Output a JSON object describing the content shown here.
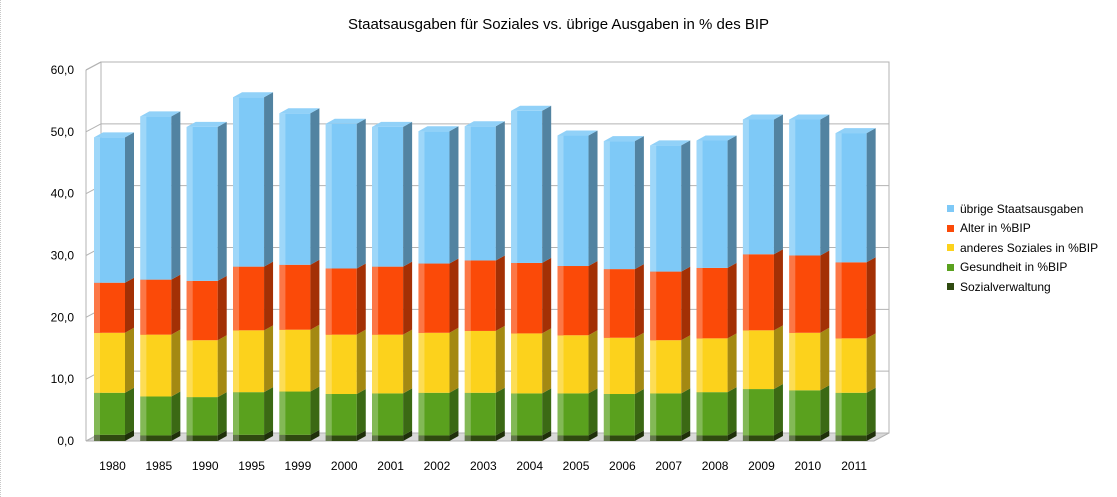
{
  "chart_data": {
    "type": "bar",
    "stacked": true,
    "title": "Staatsausgaben für Soziales vs. übrige Ausgaben in % des BIP",
    "xlabel": "",
    "ylabel": "",
    "ylim": [
      0,
      60
    ],
    "yticks": [
      "0,0",
      "10,0",
      "20,0",
      "30,0",
      "40,0",
      "50,0",
      "60,0"
    ],
    "grid": true,
    "legend_position": "right",
    "categories": [
      "1980",
      "1985",
      "1990",
      "1995",
      "1999",
      "2000",
      "2001",
      "2002",
      "2003",
      "2004",
      "2005",
      "2006",
      "2007",
      "2008",
      "2009",
      "2010",
      "2011"
    ],
    "series": [
      {
        "name": "Sozialverwaltung",
        "color": "#2f4a10",
        "values": [
          1.0,
          0.9,
          0.9,
          1.0,
          1.0,
          0.9,
          0.9,
          0.9,
          0.9,
          0.9,
          0.9,
          0.9,
          0.9,
          0.9,
          0.9,
          0.9,
          0.9
        ]
      },
      {
        "name": "Gesundheit in %BIP",
        "color": "#5aa11e",
        "values": [
          6.8,
          6.3,
          6.2,
          6.9,
          7.0,
          6.7,
          6.8,
          6.9,
          6.9,
          6.8,
          6.8,
          6.7,
          6.8,
          7.0,
          7.5,
          7.3,
          6.9
        ]
      },
      {
        "name": "anderes Soziales in %BIP",
        "color": "#fcd21c",
        "values": [
          9.7,
          10.0,
          9.2,
          10.0,
          10.0,
          9.6,
          9.5,
          9.7,
          10.0,
          9.7,
          9.4,
          9.1,
          8.6,
          8.7,
          9.5,
          9.3,
          8.8
        ]
      },
      {
        "name": "Alter in %BIP",
        "color": "#fb4a08",
        "values": [
          8.1,
          8.9,
          9.6,
          10.3,
          10.5,
          10.7,
          11.0,
          11.2,
          11.4,
          11.4,
          11.2,
          11.1,
          11.1,
          11.4,
          12.3,
          12.5,
          12.3
        ]
      },
      {
        "name": "übrige Staatsausgaben",
        "color": "#7ec9f7",
        "values": [
          23.5,
          26.4,
          24.9,
          27.4,
          24.5,
          23.4,
          22.6,
          21.4,
          21.7,
          24.6,
          21.1,
          20.7,
          20.4,
          20.6,
          21.8,
          22.0,
          20.9
        ]
      }
    ]
  }
}
